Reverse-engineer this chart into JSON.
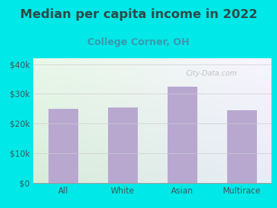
{
  "title": "Median per capita income in 2022",
  "subtitle": "College Corner, OH",
  "categories": [
    "All",
    "White",
    "Asian",
    "Multirace"
  ],
  "values": [
    25000,
    25500,
    32500,
    24500
  ],
  "bar_color": "#b8a8d0",
  "title_color": "#2d4a4a",
  "subtitle_color": "#3a9ab0",
  "tick_color": "#3d5a5a",
  "background_outer": "#00e8e8",
  "gradient_colors": [
    "#d8ecd8",
    "#eef4f8",
    "#f5f0f8"
  ],
  "ylim": [
    0,
    42000
  ],
  "yticks": [
    0,
    10000,
    20000,
    30000,
    40000
  ],
  "ytick_labels": [
    "$0",
    "$10k",
    "$20k",
    "$30k",
    "$40k"
  ],
  "watermark": "City-Data.com",
  "title_fontsize": 13,
  "subtitle_fontsize": 10,
  "tick_fontsize": 8.5,
  "bar_width": 0.5
}
